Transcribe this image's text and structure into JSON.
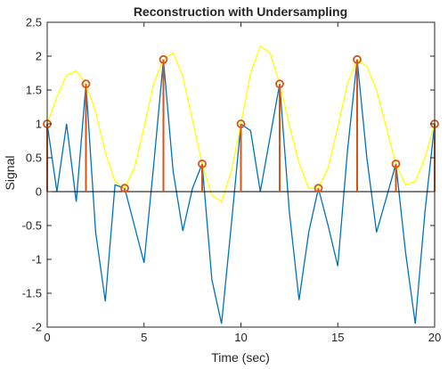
{
  "chart_data": {
    "type": "line",
    "title": "Reconstruction with Undersampling",
    "xlabel": "Time (sec)",
    "ylabel": "Signal",
    "xlim": [
      0,
      20
    ],
    "ylim": [
      -2,
      2.5
    ],
    "xticks": [
      0,
      5,
      10,
      15,
      20
    ],
    "yticks": [
      -2,
      -1.5,
      -1,
      -0.5,
      0,
      0.5,
      1,
      1.5,
      2,
      2.5
    ],
    "grid": false,
    "legend": "none",
    "samples": {
      "x": [
        0,
        2,
        4,
        6,
        8,
        10,
        12,
        14,
        16,
        18,
        20
      ],
      "y": [
        1.0,
        1.59,
        0.05,
        1.95,
        0.41,
        1.0,
        1.59,
        0.05,
        1.95,
        0.41,
        1.0
      ]
    },
    "series": [
      {
        "style": "line",
        "color": "#0072BD",
        "x": [
          0,
          0.5,
          1.0,
          1.5,
          2.0,
          2.5,
          3.0,
          3.5,
          4.0,
          4.5,
          5.0,
          5.5,
          6.0,
          6.5,
          7.0,
          7.5,
          8.0,
          8.5,
          9.0,
          9.5,
          10.0,
          10.5,
          11.0,
          11.5,
          12.0,
          12.5,
          13.0,
          13.5,
          14.0,
          14.5,
          15.0,
          15.5,
          16.0,
          16.5,
          17.0,
          17.5,
          18.0,
          18.5,
          19.0,
          19.5,
          20.0
        ],
        "y": [
          1.0,
          0.0,
          1.0,
          -0.15,
          1.59,
          -0.6,
          -1.62,
          0.1,
          0.05,
          -0.5,
          -1.05,
          0.4,
          1.95,
          0.3,
          -0.58,
          0.05,
          0.41,
          -1.3,
          -1.95,
          -0.5,
          1.0,
          0.9,
          0.0,
          0.8,
          1.59,
          -0.3,
          -1.6,
          -0.6,
          0.05,
          -0.5,
          -1.1,
          0.6,
          1.95,
          0.5,
          -0.6,
          -0.1,
          0.41,
          -0.9,
          -1.95,
          -0.3,
          1.0
        ]
      },
      {
        "style": "line",
        "color": "#FFFF00",
        "x": [
          0,
          0.5,
          1.0,
          1.5,
          2.0,
          2.5,
          3.0,
          3.5,
          4.0,
          4.5,
          5.0,
          5.5,
          6.0,
          6.5,
          7.0,
          7.5,
          8.0,
          8.5,
          9.0,
          9.5,
          10.0,
          10.5,
          11.0,
          11.5,
          12.0,
          12.5,
          13.0,
          13.5,
          14.0,
          14.5,
          15.0,
          15.5,
          16.0,
          16.5,
          17.0,
          17.5,
          18.0,
          18.5,
          19.0,
          19.5,
          20.0
        ],
        "y": [
          1.0,
          1.4,
          1.72,
          1.78,
          1.59,
          1.18,
          0.58,
          0.15,
          0.05,
          0.35,
          0.95,
          1.6,
          1.95,
          2.05,
          1.7,
          1.05,
          0.41,
          -0.05,
          -0.15,
          0.3,
          1.0,
          1.75,
          2.15,
          2.05,
          1.59,
          0.98,
          0.42,
          0.05,
          0.05,
          0.35,
          0.95,
          1.6,
          1.95,
          1.85,
          1.5,
          0.95,
          0.41,
          0.1,
          0.15,
          0.5,
          1.0
        ]
      }
    ],
    "colors": {
      "stem": "#D95319",
      "marker": "#D95319",
      "zero_line": "#000000",
      "axes": "#262626"
    }
  }
}
